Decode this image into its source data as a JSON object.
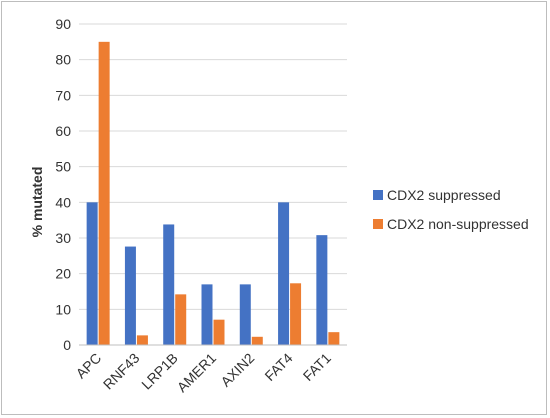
{
  "chart_data": {
    "type": "bar",
    "categories": [
      "APC",
      "RNF43",
      "LRP1B",
      "AMER1",
      "AXIN2",
      "FAT4",
      "FAT1"
    ],
    "series": [
      {
        "name": "CDX2 suppressed",
        "values": [
          40,
          27.6,
          33.8,
          17,
          17,
          40,
          30.8
        ],
        "color": "#4472C4"
      },
      {
        "name": "CDX2 non-suppressed",
        "values": [
          85,
          2.7,
          14.2,
          7.1,
          2.3,
          17.3,
          3.6
        ],
        "color": "#ED7D31"
      }
    ],
    "title": "",
    "xlabel": "",
    "ylabel": "% mutated",
    "ylim": [
      0,
      90
    ],
    "yticks": [
      0,
      10,
      20,
      30,
      40,
      50,
      60,
      70,
      80,
      90
    ],
    "grid": "horizontal",
    "legend_position": "right",
    "gridline_color": "#d9d9d9"
  }
}
